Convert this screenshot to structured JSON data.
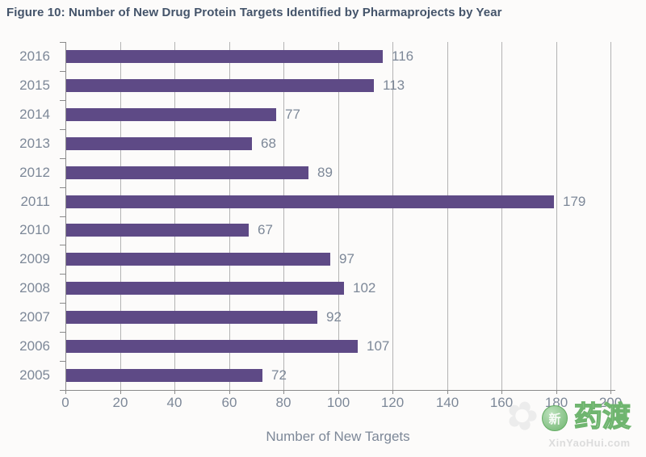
{
  "figure": {
    "title": "Figure 10: Number of New Drug Protein Targets Identified by Pharmaprojects by Year"
  },
  "chart_data": {
    "type": "bar",
    "orientation": "horizontal",
    "title": "Figure 10: Number of New Drug Protein Targets Identified by Pharmaprojects by Year",
    "categories": [
      "2016",
      "2015",
      "2014",
      "2013",
      "2012",
      "2011",
      "2010",
      "2009",
      "2008",
      "2007",
      "2006",
      "2005"
    ],
    "values": [
      116,
      113,
      77,
      68,
      89,
      179,
      67,
      97,
      102,
      92,
      107,
      72
    ],
    "xlabel": "Number of New Targets",
    "ylabel": "",
    "xlim": [
      0,
      200
    ],
    "xticks": [
      0,
      20,
      40,
      60,
      80,
      100,
      120,
      140,
      160,
      180,
      200
    ],
    "grid": true,
    "value_labels": true,
    "legend": "none",
    "bar_color": "#5E4A86",
    "label_color": "#7D8898",
    "title_color": "#44546A",
    "gridline_color": "#B3B3B3",
    "axis_color": "#8A8A8A"
  },
  "watermark": {
    "clover_icon": "clover-flower",
    "face_overlay_char": "新",
    "brand_text": "药渡",
    "url_text": "XinYaoHui.com",
    "green": "#6FB56F",
    "light_gray": "#DCDCDC"
  }
}
